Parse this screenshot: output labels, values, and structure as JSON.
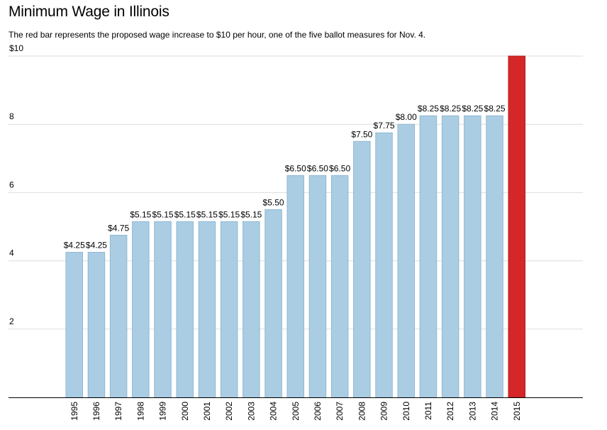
{
  "chart_data": {
    "type": "bar",
    "title": "Minimum Wage in Illinois",
    "subtitle": "The red bar represents the proposed wage increase to $10 per hour, one of the five ballot measures for Nov. 4.",
    "categories": [
      "1995",
      "1996",
      "1997",
      "1998",
      "1999",
      "2000",
      "2001",
      "2002",
      "2003",
      "2004",
      "2005",
      "2006",
      "2007",
      "2008",
      "2009",
      "2010",
      "2011",
      "2012",
      "2013",
      "2014",
      "2015"
    ],
    "values": [
      4.25,
      4.25,
      4.75,
      5.15,
      5.15,
      5.15,
      5.15,
      5.15,
      5.15,
      5.5,
      6.5,
      6.5,
      6.5,
      7.5,
      7.75,
      8.0,
      8.25,
      8.25,
      8.25,
      8.25,
      10.0
    ],
    "value_labels": [
      "$4.25",
      "$4.25",
      "$4.75",
      "$5.15",
      "$5.15",
      "$5.15",
      "$5.15",
      "$5.15",
      "$5.15",
      "$5.50",
      "$6.50",
      "$6.50",
      "$6.50",
      "$7.50",
      "$7.75",
      "$8.00",
      "$8.25",
      "$8.25",
      "$8.25",
      "$8.25",
      ""
    ],
    "highlight_category": "2015",
    "y_ticks": [
      {
        "value": 2,
        "label": "2"
      },
      {
        "value": 4,
        "label": "4"
      },
      {
        "value": 6,
        "label": "6"
      },
      {
        "value": 8,
        "label": "8"
      },
      {
        "value": 10,
        "label": "$10"
      }
    ],
    "ylim": [
      0,
      10
    ],
    "grid": true,
    "xlabel": "",
    "ylabel": "",
    "colors": {
      "bar": "#abcde4",
      "bar_stroke": "#8fb7d3",
      "highlight": "#d62728",
      "highlight_stroke": "#b01e1e",
      "grid": "#dddddd",
      "axis": "#000000"
    }
  }
}
